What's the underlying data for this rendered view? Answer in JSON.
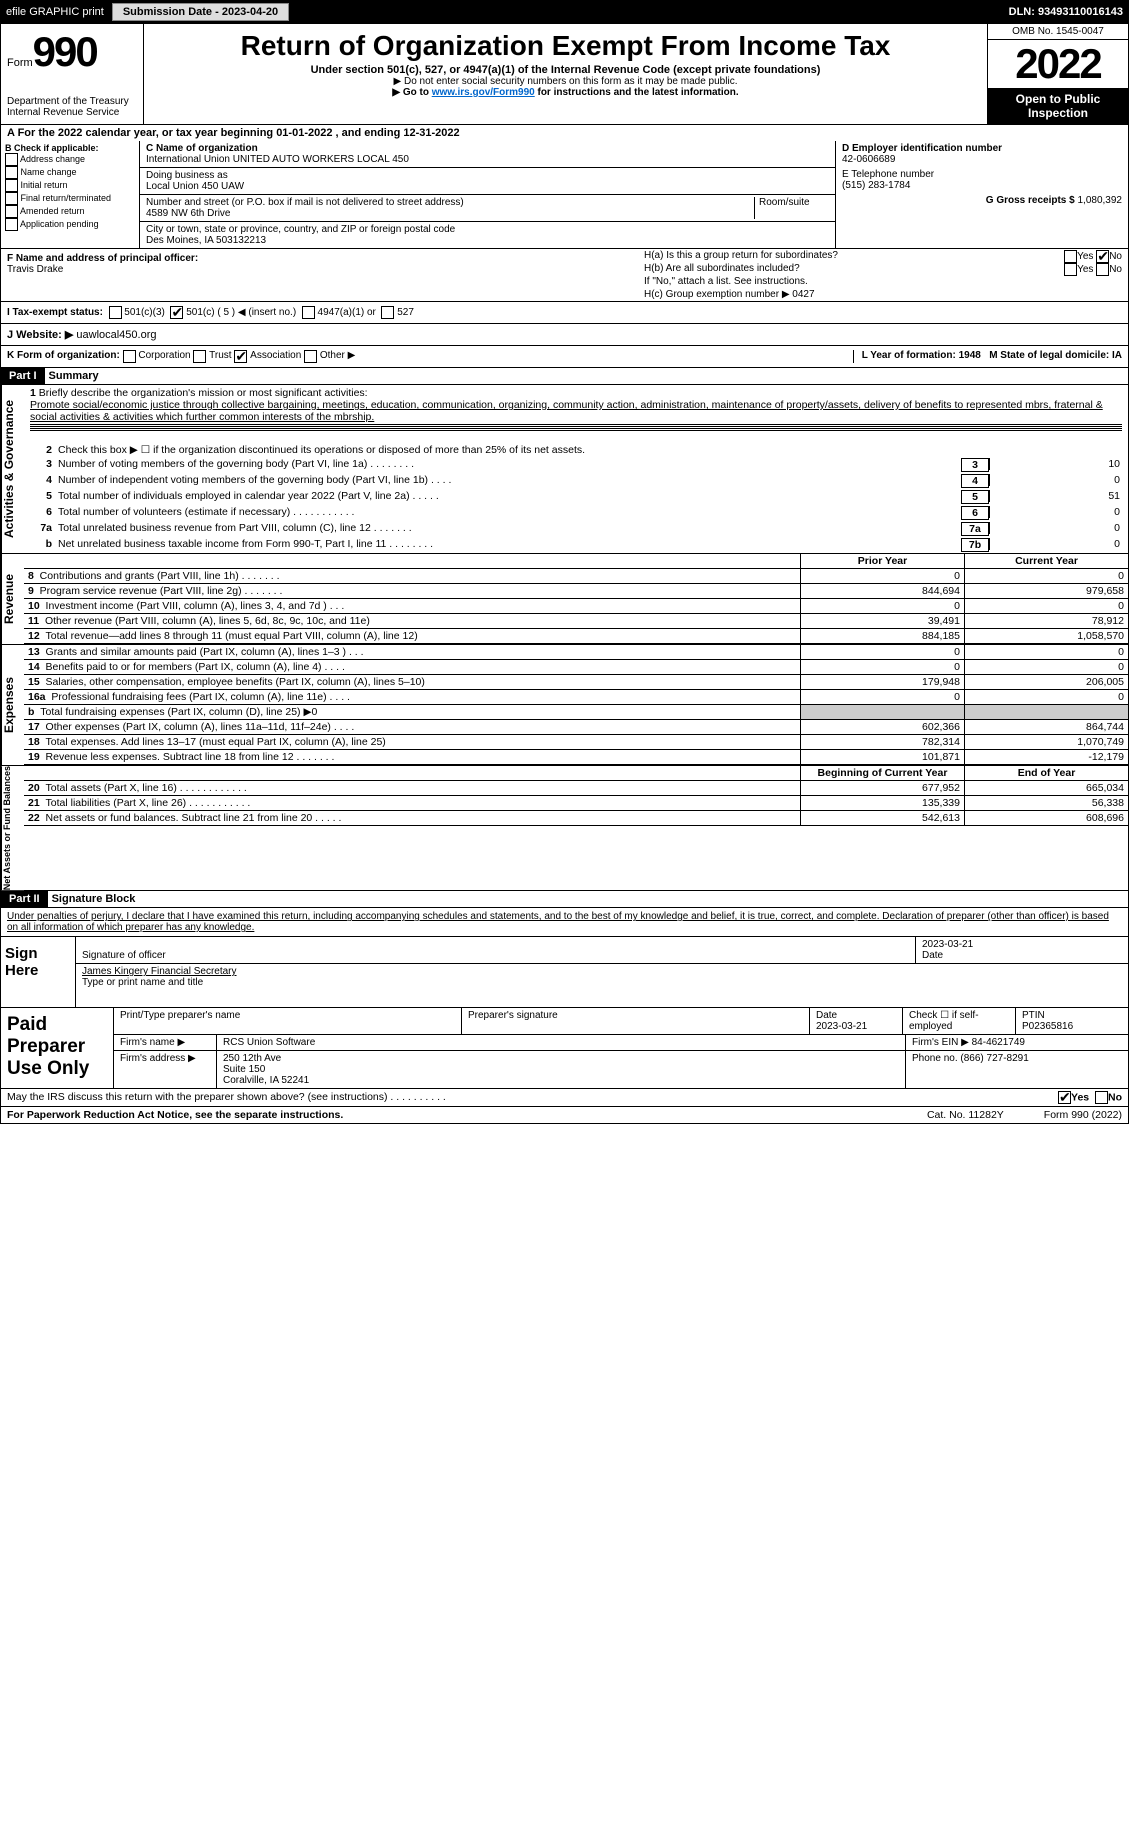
{
  "topbar": {
    "efile": "efile GRAPHIC print",
    "submit_btn": "Submission Date - 2023-04-20",
    "dln": "DLN: 93493110016143"
  },
  "header": {
    "form_label": "Form",
    "form_num": "990",
    "title": "Return of Organization Exempt From Income Tax",
    "subtitle": "Under section 501(c), 527, or 4947(a)(1) of the Internal Revenue Code (except private foundations)",
    "note1": "▶ Do not enter social security numbers on this form as it may be made public.",
    "note2_pre": "▶ Go to ",
    "note2_link": "www.irs.gov/Form990",
    "note2_post": " for instructions and the latest information.",
    "dept": "Department of the Treasury\nInternal Revenue Service",
    "omb": "OMB No. 1545-0047",
    "year": "2022",
    "inspection": "Open to Public Inspection"
  },
  "A": {
    "cal": "A For the 2022 calendar year, or tax year beginning 01-01-2022    , and ending 12-31-2022"
  },
  "B": {
    "lbl": "B Check if applicable:",
    "items": [
      "Address change",
      "Name change",
      "Initial return",
      "Final return/terminated",
      "Amended return",
      "Application pending"
    ]
  },
  "C": {
    "name_lbl": "C Name of organization",
    "name": "International Union UNITED AUTO WORKERS LOCAL 450",
    "dba_lbl": "Doing business as",
    "dba": "Local Union 450 UAW",
    "addr_lbl": "Number and street (or P.O. box if mail is not delivered to street address)",
    "room_lbl": "Room/suite",
    "addr": "4589 NW 6th Drive",
    "city_lbl": "City or town, state or province, country, and ZIP or foreign postal code",
    "city": "Des Moines, IA  503132213"
  },
  "D": {
    "lbl": "D Employer identification number",
    "val": "42-0606689"
  },
  "E": {
    "lbl": "E Telephone number",
    "val": "(515) 283-1784"
  },
  "G": {
    "lbl": "G Gross receipts $",
    "val": "1,080,392"
  },
  "F": {
    "lbl": "F  Name and address of principal officer:",
    "val": "Travis Drake"
  },
  "H": {
    "a": "H(a)  Is this a group return for subordinates?",
    "a_yes": "Yes",
    "a_no": "No",
    "b": "H(b)  Are all subordinates included?",
    "b_note": "If \"No,\" attach a list. See instructions.",
    "c": "H(c)  Group exemption number ▶   0427"
  },
  "I": {
    "lbl": "I    Tax-exempt status:",
    "opts": [
      "501(c)(3)",
      "501(c) ( 5 ) ◀ (insert no.)",
      "4947(a)(1) or",
      "527"
    ]
  },
  "J": {
    "lbl": "J    Website: ▶",
    "val": "  uawlocal450.org"
  },
  "K": {
    "lbl": "K Form of organization:",
    "opts": [
      "Corporation",
      "Trust",
      "Association",
      "Other ▶"
    ]
  },
  "L": {
    "lbl": "L Year of formation: 1948"
  },
  "M": {
    "lbl": "M State of legal domicile: IA"
  },
  "part1": {
    "hd": "Part I",
    "title": "Summary"
  },
  "gov": {
    "l1_lbl": "Briefly describe the organization's mission or most significant activities:",
    "l1": "Promote social/economic justice through collective bargaining, meetings, education, communication, organizing, community action, administration, maintenance of property/assets, delivery of benefits to represented mbrs, fraternal & social activities & activities which further common interests of the mbrship.",
    "l2": "Check this box ▶ ☐  if the organization discontinued its operations or disposed of more than 25% of its net assets.",
    "rows": [
      {
        "n": "3",
        "t": "Number of voting members of the governing body (Part VI, line 1a)   .    .    .    .    .    .    .    .",
        "box": "3",
        "v": "10"
      },
      {
        "n": "4",
        "t": "Number of independent voting members of the governing body (Part VI, line 1b)    .    .    .    .",
        "box": "4",
        "v": "0"
      },
      {
        "n": "5",
        "t": "Total number of individuals employed in calendar year 2022 (Part V, line 2a)   .    .    .    .    .",
        "box": "5",
        "v": "51"
      },
      {
        "n": "6",
        "t": "Total number of volunteers (estimate if necessary)    .    .    .    .    .    .    .    .    .    .    .",
        "box": "6",
        "v": "0"
      },
      {
        "n": "7a",
        "t": "Total unrelated business revenue from Part VIII, column (C), line 12   .    .    .    .    .    .    .",
        "box": "7a",
        "v": "0"
      },
      {
        "n": "b",
        "t": "Net unrelated business taxable income from Form 990-T, Part I, line 11    .    .    .    .    .    .    .    .",
        "box": "7b",
        "v": "0"
      }
    ]
  },
  "rev": {
    "hd_prior": "Prior Year",
    "hd_cur": "Current Year",
    "rows": [
      {
        "n": "8",
        "t": "Contributions and grants (Part VIII, line 1h)   .    .    .    .    .    .    .",
        "p": "0",
        "c": "0"
      },
      {
        "n": "9",
        "t": "Program service revenue (Part VIII, line 2g)   .    .    .    .    .    .    .",
        "p": "844,694",
        "c": "979,658"
      },
      {
        "n": "10",
        "t": "Investment income (Part VIII, column (A), lines 3, 4, and 7d )   .    .    .",
        "p": "0",
        "c": "0"
      },
      {
        "n": "11",
        "t": "Other revenue (Part VIII, column (A), lines 5, 6d, 8c, 9c, 10c, and 11e)",
        "p": "39,491",
        "c": "78,912"
      },
      {
        "n": "12",
        "t": "Total revenue—add lines 8 through 11 (must equal Part VIII, column (A), line 12)",
        "p": "884,185",
        "c": "1,058,570"
      }
    ]
  },
  "exp": {
    "rows": [
      {
        "n": "13",
        "t": "Grants and similar amounts paid (Part IX, column (A), lines 1–3 )   .    .    .",
        "p": "0",
        "c": "0"
      },
      {
        "n": "14",
        "t": "Benefits paid to or for members (Part IX, column (A), line 4)   .    .    .    .",
        "p": "0",
        "c": "0"
      },
      {
        "n": "15",
        "t": "Salaries, other compensation, employee benefits (Part IX, column (A), lines 5–10)",
        "p": "179,948",
        "c": "206,005"
      },
      {
        "n": "16a",
        "t": "Professional fundraising fees (Part IX, column (A), line 11e)   .    .    .    .",
        "p": "0",
        "c": "0"
      },
      {
        "n": "b",
        "t": "Total fundraising expenses (Part IX, column (D), line 25) ▶0",
        "p": "",
        "c": "",
        "grey": true
      },
      {
        "n": "17",
        "t": "Other expenses (Part IX, column (A), lines 11a–11d, 11f–24e)   .    .    .    .",
        "p": "602,366",
        "c": "864,744"
      },
      {
        "n": "18",
        "t": "Total expenses. Add lines 13–17 (must equal Part IX, column (A), line 25)",
        "p": "782,314",
        "c": "1,070,749"
      },
      {
        "n": "19",
        "t": "Revenue less expenses. Subtract line 18 from line 12   .    .    .    .    .    .    .",
        "p": "101,871",
        "c": "-12,179"
      }
    ]
  },
  "net": {
    "hd_beg": "Beginning of Current Year",
    "hd_end": "End of Year",
    "rows": [
      {
        "n": "20",
        "t": "Total assets (Part X, line 16)   .    .    .    .    .    .    .    .    .    .    .    .",
        "p": "677,952",
        "c": "665,034"
      },
      {
        "n": "21",
        "t": "Total liabilities (Part X, line 26)   .    .    .    .    .    .    .    .    .    .    .",
        "p": "135,339",
        "c": "56,338"
      },
      {
        "n": "22",
        "t": "Net assets or fund balances. Subtract line 21 from line 20   .    .    .    .    .",
        "p": "542,613",
        "c": "608,696"
      }
    ]
  },
  "part2": {
    "hd": "Part II",
    "title": "Signature Block",
    "decl": "Under penalties of perjury, I declare that I have examined this return, including accompanying schedules and statements, and to the best of my knowledge and belief, it is true, correct, and complete. Declaration of preparer (other than officer) is based on all information of which preparer has any knowledge."
  },
  "sign": {
    "lbl": "Sign Here",
    "sig_lbl": "Signature of officer",
    "date_lbl": "Date",
    "date": "2023-03-21",
    "name": "James Kingery  Financial Secretary",
    "name_lbl": "Type or print name and title"
  },
  "paid": {
    "lbl": "Paid Preparer Use Only",
    "h1": "Print/Type preparer's name",
    "h2": "Preparer's signature",
    "h3": "Date",
    "h3v": "2023-03-21",
    "h4": "Check ☐ if self-employed",
    "h5": "PTIN",
    "h5v": "P02365816",
    "firm_lbl": "Firm's name    ▶",
    "firm": "RCS Union Software",
    "ein_lbl": "Firm's EIN ▶",
    "ein": "84-4621749",
    "addr_lbl": "Firm's address ▶",
    "addr": "250 12th Ave\nSuite 150\nCoralville, IA  52241",
    "phone_lbl": "Phone no.",
    "phone": "(866) 727-8291"
  },
  "discuss": {
    "t": "May the IRS discuss this return with the preparer shown above? (see instructions)   .    .    .    .    .    .    .    .    .    .",
    "yes": "Yes",
    "no": "No"
  },
  "footer": {
    "pra": "For Paperwork Reduction Act Notice, see the separate instructions.",
    "cat": "Cat. No. 11282Y",
    "form": "Form 990 (2022)"
  }
}
